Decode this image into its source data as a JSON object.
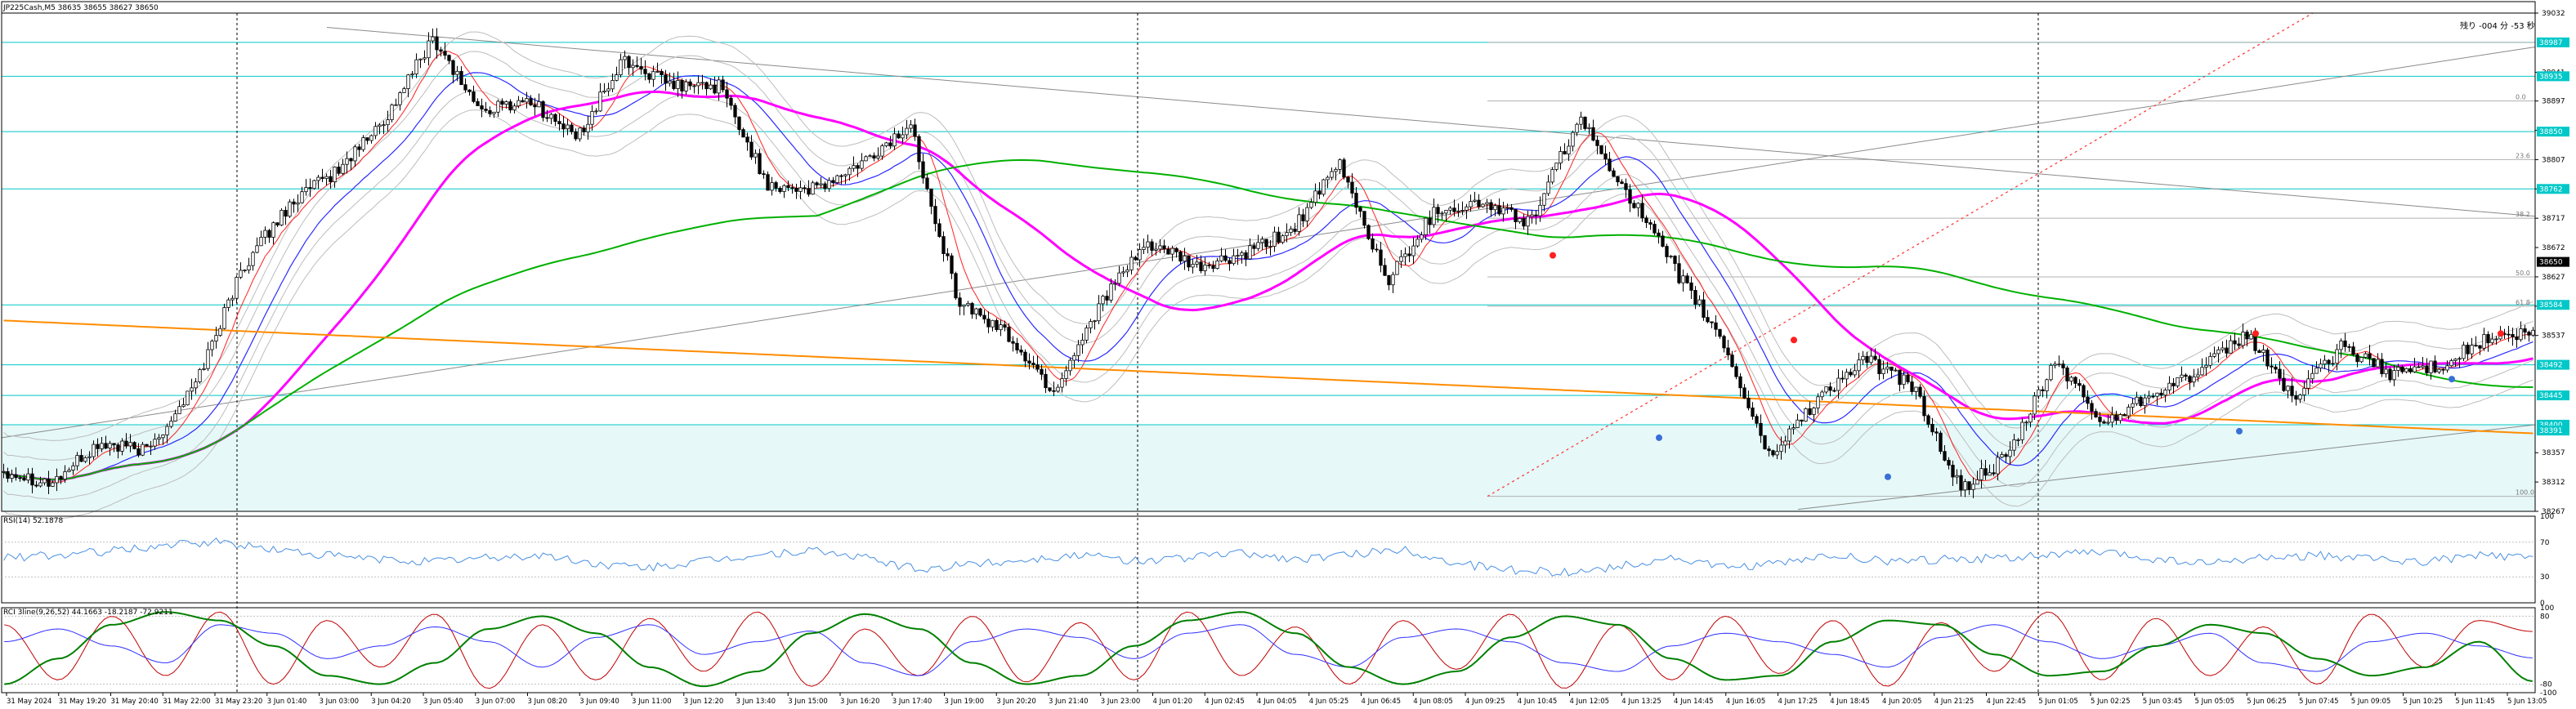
{
  "header": {
    "main_title": "JP225Cash,M5  38635 38655 38627 38650",
    "corner_text": "残り -004 分 -53 秒",
    "rsi_title": "RSI(14) 52.1878",
    "stc_title": "RCI 3line(9,26,52) 44.1663 -18.2187 -72.9211"
  },
  "colors": {
    "background": "#ffffff",
    "candles": "#000000",
    "ma_magenta": "#ff00ff",
    "ma_green": "#00b000",
    "ma_orange": "#ff8c00",
    "ma_blue": "#2a2aff",
    "ma_red": "#ff2020",
    "band_gray": "#bdbdbd",
    "level_cyan": "#00c8c8",
    "zone_fill": "#e6f8f8",
    "rsi_line": "#4a90e2",
    "osc_red": "#c00000",
    "osc_green": "#008000",
    "osc_blue": "#3030ff",
    "current_price_bg": "#000000"
  },
  "chart_data": [
    {
      "type": "candlestick",
      "panel": "main",
      "symbol": "JP225Cash",
      "timeframe": "M5",
      "ohlc_current": {
        "open": 38635,
        "high": 38655,
        "low": 38627,
        "close": 38650
      },
      "ylim": [
        38267,
        39032
      ],
      "y_ticks": [
        39032,
        38941,
        38897,
        38852,
        38807,
        38762,
        38717,
        38672,
        38627,
        38582,
        38537,
        38357,
        38312,
        38267
      ],
      "current_price_label": "38650",
      "cyan_price_labels": [
        "38987",
        "38935",
        "38850",
        "38762",
        "38584",
        "38492",
        "38445",
        "38400",
        "38391"
      ],
      "fib_labels": [
        "0.0",
        "23.6",
        "38.2",
        "50.0",
        "61.8",
        "100.0"
      ],
      "x_tick_labels": [
        "31 May 2024",
        "31 May 19:20",
        "31 May 20:40",
        "31 May 22:00",
        "31 May 23:20",
        "3 Jun 01:40",
        "3 Jun 03:00",
        "3 Jun 04:20",
        "3 Jun 05:40",
        "3 Jun 07:00",
        "3 Jun 08:20",
        "3 Jun 09:40",
        "3 Jun 11:00",
        "3 Jun 12:20",
        "3 Jun 13:40",
        "3 Jun 15:00",
        "3 Jun 16:20",
        "3 Jun 17:40",
        "3 Jun 19:00",
        "3 Jun 20:20",
        "3 Jun 21:40",
        "3 Jun 23:00",
        "4 Jun 01:20",
        "4 Jun 02:45",
        "4 Jun 04:05",
        "4 Jun 05:25",
        "4 Jun 06:45",
        "4 Jun 08:05",
        "4 Jun 09:25",
        "4 Jun 10:45",
        "4 Jun 12:05",
        "4 Jun 13:25",
        "4 Jun 14:45",
        "4 Jun 16:05",
        "4 Jun 17:25",
        "4 Jun 18:45",
        "4 Jun 20:05",
        "4 Jun 21:25",
        "4 Jun 22:45",
        "5 Jun 01:05",
        "5 Jun 02:25",
        "5 Jun 03:45",
        "5 Jun 05:05",
        "5 Jun 06:25",
        "5 Jun 07:45",
        "5 Jun 09:05",
        "5 Jun 10:25",
        "5 Jun 11:45",
        "5 Jun 13:05"
      ],
      "price_path": [
        38330,
        38310,
        38370,
        38360,
        38460,
        38640,
        38740,
        38790,
        38870,
        38995,
        38880,
        38900,
        38840,
        38960,
        38920,
        38920,
        38770,
        38760,
        38800,
        38860,
        38590,
        38540,
        38450,
        38590,
        38680,
        38640,
        38660,
        38700,
        38800,
        38620,
        38730,
        38740,
        38710,
        38870,
        38760,
        38640,
        38530,
        38350,
        38440,
        38500,
        38460,
        38300,
        38350,
        38500,
        38400,
        38450,
        38480,
        38540,
        38440,
        38520,
        38480,
        38490,
        38530,
        38540
      ],
      "grid": false,
      "legend": "none"
    },
    {
      "type": "line",
      "panel": "rsi",
      "title": "RSI(14) 52.1878",
      "ylim": [
        0,
        100
      ],
      "y_ticks": [
        100,
        70,
        30,
        0
      ],
      "values": [
        52,
        55,
        60,
        66,
        70,
        62,
        55,
        50,
        48,
        52,
        55,
        45,
        40,
        48,
        55,
        60,
        52,
        38,
        45,
        50,
        55,
        48,
        52,
        58,
        50,
        55,
        62,
        45,
        38,
        35,
        42,
        52,
        40,
        45,
        55,
        48,
        50,
        52,
        55,
        58,
        50,
        45,
        52,
        55,
        50,
        48,
        55,
        52
      ]
    },
    {
      "type": "line",
      "panel": "oscillator",
      "title": "RCI 3line(9,26,52) 44.1663 -18.2187 -72.9211",
      "ylim": [
        -100,
        100
      ],
      "y_ticks": [
        100,
        80,
        -80,
        -100
      ],
      "series": [
        {
          "name": "9",
          "color": "#c00000",
          "values": [
            60,
            -70,
            80,
            -60,
            90,
            -80,
            70,
            -40,
            85,
            -90,
            60,
            -70,
            75,
            -50,
            90,
            -85,
            50,
            -60,
            80,
            -75,
            65,
            -70,
            90,
            -60,
            55,
            -80,
            70,
            -45,
            85,
            -90,
            60,
            -70,
            80,
            -55,
            70,
            -85,
            65,
            -50,
            90,
            -70,
            75,
            -60,
            55,
            -80,
            85,
            -40,
            70,
            44
          ]
        },
        {
          "name": "26",
          "color": "#3030ff",
          "values": [
            20,
            50,
            10,
            -30,
            60,
            40,
            -20,
            10,
            55,
            20,
            -40,
            30,
            60,
            -10,
            20,
            45,
            -30,
            -60,
            20,
            50,
            30,
            -20,
            40,
            60,
            -10,
            -40,
            30,
            50,
            20,
            -30,
            -50,
            10,
            40,
            20,
            -10,
            -40,
            30,
            60,
            20,
            -20,
            10,
            40,
            -30,
            -50,
            20,
            40,
            10,
            -18
          ]
        },
        {
          "name": "52",
          "color": "#008000",
          "values": [
            -80,
            -20,
            60,
            90,
            70,
            10,
            -60,
            -80,
            -30,
            50,
            80,
            40,
            -40,
            -85,
            -50,
            40,
            85,
            50,
            -30,
            -80,
            -60,
            10,
            70,
            90,
            40,
            -40,
            -80,
            -50,
            30,
            80,
            60,
            -20,
            -70,
            -60,
            20,
            70,
            60,
            -10,
            -60,
            -50,
            10,
            60,
            40,
            -20,
            -60,
            -40,
            20,
            -73
          ]
        }
      ]
    }
  ]
}
